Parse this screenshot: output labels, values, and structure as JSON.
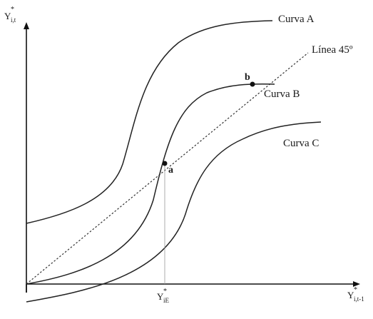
{
  "y_axis_label": {
    "main": "Y",
    "sub": "i,t",
    "sup": "*"
  },
  "x_axis_label": {
    "main": "Y",
    "sub": "i,t-1",
    "sup": "*"
  },
  "x_tick_label": {
    "main": "Y",
    "sub": "iE",
    "sup": "*"
  },
  "curves": [
    {
      "label": "Curva A"
    },
    {
      "label": "Curva B"
    },
    {
      "label": "Curva C"
    }
  ],
  "diagonal": {
    "label": "Línea 45º"
  },
  "points": [
    {
      "label": "a"
    },
    {
      "label": "b"
    }
  ]
}
